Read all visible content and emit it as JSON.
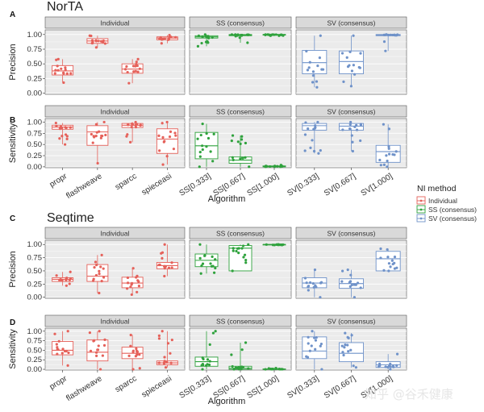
{
  "figure": {
    "x_axis_title": "Algorithm",
    "x_categories": [
      "propr",
      "flashweave",
      "sparcc",
      "spieceasi",
      "SS[0.333]",
      "SS[0.667]",
      "SS[1.000]",
      "SV[0.333]",
      "SV[0.667]",
      "SV[1.000]"
    ],
    "strips": [
      "Individual",
      "SS (consensus)",
      "SV (consensus)"
    ],
    "legend": {
      "title": "NI method",
      "position": "right",
      "items": [
        {
          "label": "Individual",
          "color": "#E5615A"
        },
        {
          "label": "SS (consensus)",
          "color": "#2FA23D"
        },
        {
          "label": "SV (consensus)",
          "color": "#6F92C9"
        }
      ]
    },
    "watermark": "知乎 @谷禾健康",
    "panel_background": "#EBEBEB",
    "strip_background": "#D9D9D9"
  },
  "chart_data": [
    {
      "type": "box",
      "panel": "A",
      "section_title": "NorTA",
      "ylabel": "Precision",
      "yticks": [
        0,
        0.25,
        0.5,
        0.75,
        1
      ],
      "ylim": [
        -0.02,
        1.08
      ],
      "categories": [
        "propr",
        "flashweave",
        "sparcc",
        "spieceasi",
        "SS[0.333]",
        "SS[0.667]",
        "SS[1.000]",
        "SV[0.333]",
        "SV[0.667]",
        "SV[1.000]"
      ],
      "groups": [
        "Individual",
        "Individual",
        "Individual",
        "Individual",
        "SS (consensus)",
        "SS (consensus)",
        "SS (consensus)",
        "SV (consensus)",
        "SV (consensus)",
        "SV (consensus)"
      ],
      "boxes": [
        {
          "q1": 0.31,
          "median": 0.38,
          "q3": 0.47,
          "lo": 0.18,
          "hi": 0.58
        },
        {
          "q1": 0.85,
          "median": 0.89,
          "q3": 0.93,
          "lo": 0.78,
          "hi": 0.98
        },
        {
          "q1": 0.34,
          "median": 0.41,
          "q3": 0.5,
          "lo": 0.17,
          "hi": 0.58
        },
        {
          "q1": 0.91,
          "median": 0.94,
          "q3": 0.96,
          "lo": 0.85,
          "hi": 0.99
        },
        {
          "q1": 0.94,
          "median": 0.96,
          "q3": 0.98,
          "lo": 0.8,
          "hi": 1.0
        },
        {
          "q1": 0.98,
          "median": 0.99,
          "q3": 1.0,
          "lo": 0.86,
          "hi": 1.0
        },
        {
          "q1": 0.99,
          "median": 1.0,
          "q3": 1.0,
          "lo": 0.98,
          "hi": 1.0
        },
        {
          "q1": 0.33,
          "median": 0.52,
          "q3": 0.73,
          "lo": 0.1,
          "hi": 0.98
        },
        {
          "q1": 0.33,
          "median": 0.54,
          "q3": 0.72,
          "lo": 0.12,
          "hi": 0.98
        },
        {
          "q1": 0.98,
          "median": 0.99,
          "q3": 1.0,
          "lo": 0.72,
          "hi": 1.0
        }
      ]
    },
    {
      "type": "box",
      "panel": "B",
      "ylabel": "Sensitivity",
      "yticks": [
        0,
        0.25,
        0.5,
        0.75,
        1
      ],
      "ylim": [
        -0.02,
        1.08
      ],
      "categories": [
        "propr",
        "flashweave",
        "sparcc",
        "spieceasi",
        "SS[0.333]",
        "SS[0.667]",
        "SS[1.000]",
        "SV[0.333]",
        "SV[0.667]",
        "SV[1.000]"
      ],
      "groups": [
        "Individual",
        "Individual",
        "Individual",
        "Individual",
        "SS (consensus)",
        "SS (consensus)",
        "SS (consensus)",
        "SV (consensus)",
        "SV (consensus)",
        "SV (consensus)"
      ],
      "boxes": [
        {
          "q1": 0.84,
          "median": 0.89,
          "q3": 0.93,
          "lo": 0.5,
          "hi": 0.98
        },
        {
          "q1": 0.48,
          "median": 0.78,
          "q3": 0.92,
          "lo": 0.08,
          "hi": 1.0
        },
        {
          "q1": 0.88,
          "median": 0.93,
          "q3": 0.97,
          "lo": 0.55,
          "hi": 1.0
        },
        {
          "q1": 0.3,
          "median": 0.62,
          "q3": 0.85,
          "lo": 0.05,
          "hi": 1.0
        },
        {
          "q1": 0.18,
          "median": 0.47,
          "q3": 0.77,
          "lo": 0.0,
          "hi": 0.96
        },
        {
          "q1": 0.08,
          "median": 0.15,
          "q3": 0.22,
          "lo": 0.0,
          "hi": 0.7
        },
        {
          "q1": 0.0,
          "median": 0.01,
          "q3": 0.02,
          "lo": 0.0,
          "hi": 0.04
        },
        {
          "q1": 0.82,
          "median": 0.92,
          "q3": 0.97,
          "lo": 0.3,
          "hi": 1.0
        },
        {
          "q1": 0.82,
          "median": 0.91,
          "q3": 0.97,
          "lo": 0.35,
          "hi": 1.0
        },
        {
          "q1": 0.1,
          "median": 0.34,
          "q3": 0.48,
          "lo": 0.0,
          "hi": 0.95
        }
      ]
    },
    {
      "type": "box",
      "panel": "C",
      "section_title": "Seqtime",
      "ylabel": "Precision",
      "yticks": [
        0,
        0.25,
        0.5,
        0.75,
        1
      ],
      "ylim": [
        -0.02,
        1.08
      ],
      "categories": [
        "propr",
        "flashweave",
        "sparcc",
        "spieceasi",
        "SS[0.333]",
        "SS[0.667]",
        "SS[1.000]",
        "SV[0.333]",
        "SV[0.667]",
        "SV[1.000]"
      ],
      "groups": [
        "Individual",
        "Individual",
        "Individual",
        "Individual",
        "SS (consensus)",
        "SS (consensus)",
        "SS (consensus)",
        "SV (consensus)",
        "SV (consensus)",
        "SV (consensus)"
      ],
      "boxes": [
        {
          "q1": 0.3,
          "median": 0.34,
          "q3": 0.37,
          "lo": 0.22,
          "hi": 0.48
        },
        {
          "q1": 0.3,
          "median": 0.4,
          "q3": 0.62,
          "lo": 0.08,
          "hi": 0.8
        },
        {
          "q1": 0.18,
          "median": 0.27,
          "q3": 0.38,
          "lo": 0.05,
          "hi": 0.55
        },
        {
          "q1": 0.54,
          "median": 0.6,
          "q3": 0.66,
          "lo": 0.4,
          "hi": 1.0
        },
        {
          "q1": 0.58,
          "median": 0.7,
          "q3": 0.82,
          "lo": 0.45,
          "hi": 1.0
        },
        {
          "q1": 0.5,
          "median": 0.93,
          "q3": 0.98,
          "lo": 0.5,
          "hi": 1.0
        },
        {
          "q1": 0.99,
          "median": 1.0,
          "q3": 1.0,
          "lo": 0.99,
          "hi": 1.0
        },
        {
          "q1": 0.18,
          "median": 0.27,
          "q3": 0.37,
          "lo": 0.0,
          "hi": 0.52
        },
        {
          "q1": 0.17,
          "median": 0.26,
          "q3": 0.35,
          "lo": 0.0,
          "hi": 0.52
        },
        {
          "q1": 0.5,
          "median": 0.73,
          "q3": 0.87,
          "lo": 0.5,
          "hi": 0.92
        }
      ]
    },
    {
      "type": "box",
      "panel": "D",
      "ylabel": "Sensitivity",
      "yticks": [
        0,
        0.25,
        0.5,
        0.75,
        1
      ],
      "ylim": [
        -0.02,
        1.08
      ],
      "categories": [
        "propr",
        "flashweave",
        "sparcc",
        "spieceasi",
        "SS[0.333]",
        "SS[0.667]",
        "SS[1.000]",
        "SV[0.333]",
        "SV[0.667]",
        "SV[1.000]"
      ],
      "groups": [
        "Individual",
        "Individual",
        "Individual",
        "Individual",
        "SS (consensus)",
        "SS (consensus)",
        "SS (consensus)",
        "SV (consensus)",
        "SV (consensus)",
        "SV (consensus)"
      ],
      "boxes": [
        {
          "q1": 0.38,
          "median": 0.5,
          "q3": 0.73,
          "lo": 0.1,
          "hi": 1.0
        },
        {
          "q1": 0.22,
          "median": 0.45,
          "q3": 0.77,
          "lo": 0.0,
          "hi": 1.0
        },
        {
          "q1": 0.28,
          "median": 0.42,
          "q3": 0.58,
          "lo": 0.0,
          "hi": 0.9
        },
        {
          "q1": 0.12,
          "median": 0.17,
          "q3": 0.22,
          "lo": 0.05,
          "hi": 1.0
        },
        {
          "q1": 0.08,
          "median": 0.2,
          "q3": 0.32,
          "lo": 0.0,
          "hi": 1.0
        },
        {
          "q1": 0.0,
          "median": 0.03,
          "q3": 0.08,
          "lo": 0.0,
          "hi": 0.7
        },
        {
          "q1": 0.0,
          "median": 0.0,
          "q3": 0.01,
          "lo": 0.0,
          "hi": 0.03
        },
        {
          "q1": 0.28,
          "median": 0.48,
          "q3": 0.85,
          "lo": 0.0,
          "hi": 1.0
        },
        {
          "q1": 0.2,
          "median": 0.42,
          "q3": 0.7,
          "lo": 0.05,
          "hi": 0.95
        },
        {
          "q1": 0.05,
          "median": 0.12,
          "q3": 0.2,
          "lo": 0.0,
          "hi": 0.4
        }
      ]
    }
  ]
}
